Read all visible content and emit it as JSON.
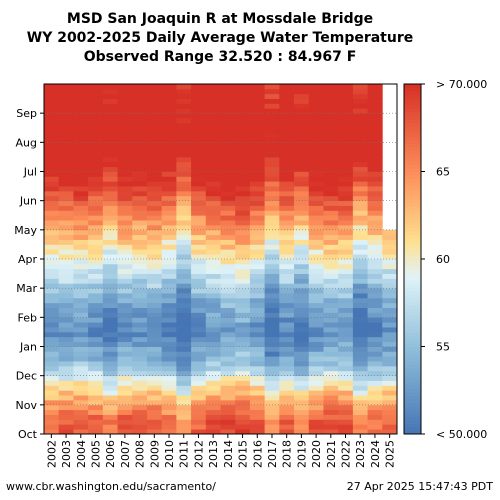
{
  "title_lines": [
    "MSD San Joaquin R at Mossdale Bridge",
    "WY 2002-2025 Daily Average Water Temperature",
    "Observed Range 32.520 : 84.967 F"
  ],
  "footer": {
    "source": "www.cbr.washington.edu/sacramento/",
    "timestamp": "27 Apr 2025 15:47:43 PDT"
  },
  "chart_data": {
    "type": "heatmap",
    "title": "MSD San Joaquin R at Mossdale Bridge WY 2002-2025 Daily Average Water Temperature",
    "subtitle": "Observed Range 32.520 : 84.967 F",
    "x_categories": [
      "2002",
      "2003",
      "2004",
      "2005",
      "2006",
      "2007",
      "2008",
      "2009",
      "2010",
      "2011",
      "2012",
      "2013",
      "2014",
      "2015",
      "2016",
      "2017",
      "2018",
      "2019",
      "2020",
      "2021",
      "2022",
      "2023",
      "2024",
      "2025"
    ],
    "y_categories": [
      "Oct",
      "Nov",
      "Dec",
      "Jan",
      "Feb",
      "Mar",
      "Apr",
      "May",
      "Jun",
      "Jul",
      "Aug",
      "Sep"
    ],
    "y_tick_labels": [
      "Oct",
      "Nov",
      "Dec",
      "Jan",
      "Feb",
      "Mar",
      "Apr",
      "May",
      "Jun",
      "Jul",
      "Aug",
      "Sep"
    ],
    "colorbar": {
      "min": 50,
      "max": 70,
      "ticks": [
        55,
        60,
        65
      ],
      "min_label": "< 50.000",
      "max_label": "> 70.000"
    },
    "units": "F",
    "monthly_base": [
      66.5,
      60.5,
      53.5,
      50.5,
      52.5,
      56.5,
      60.5,
      64.5,
      68.5,
      72,
      73,
      71
    ],
    "year_offsets": [
      0.8,
      1.3,
      1.5,
      0.8,
      -0.7,
      1.2,
      1.0,
      1.3,
      0.0,
      -2.2,
      0.8,
      1.6,
      2.2,
      2.7,
      1.3,
      -1.8,
      0.6,
      -1.2,
      1.1,
      1.9,
      1.7,
      -1.6,
      0.1,
      0.9
    ],
    "data_end": {
      "year": "2025",
      "month": "Apr"
    },
    "grid": true
  }
}
